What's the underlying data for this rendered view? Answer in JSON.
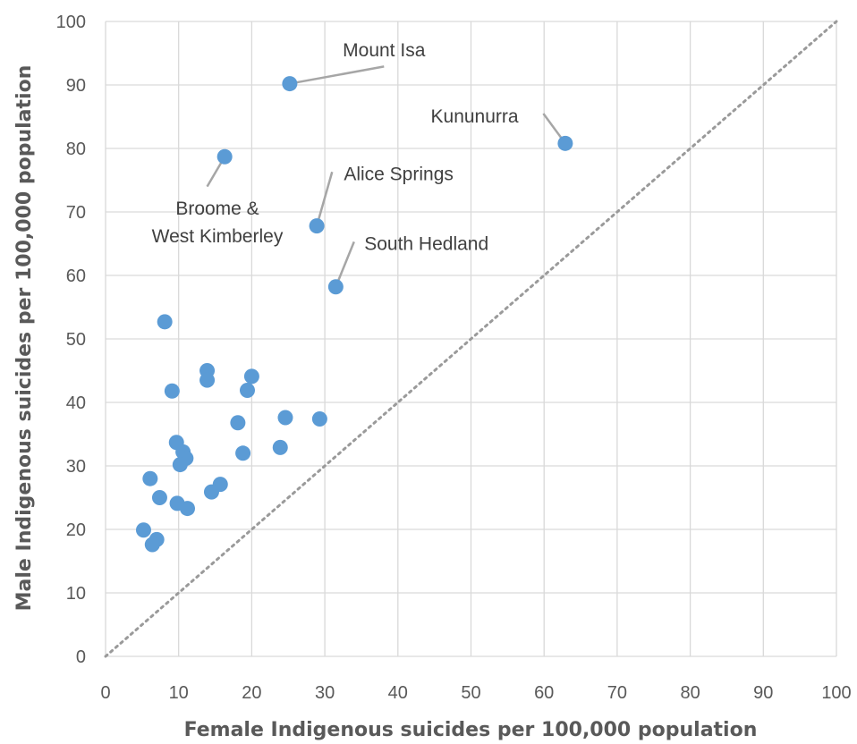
{
  "chart_data": {
    "type": "scatter",
    "title": "",
    "xlabel": "Female Indigenous suicides per 100,000 population",
    "ylabel": "Male Indigenous suicides per 100,000 population",
    "xlim": [
      0,
      100
    ],
    "ylim": [
      0,
      100
    ],
    "xticks": [
      0,
      10,
      20,
      30,
      40,
      50,
      60,
      70,
      80,
      90,
      100
    ],
    "yticks": [
      0,
      10,
      20,
      30,
      40,
      50,
      60,
      70,
      80,
      90,
      100
    ],
    "grid": true,
    "legend": "none",
    "reference_line": {
      "style": "dotted",
      "from": [
        0,
        0
      ],
      "to": [
        100,
        100
      ]
    },
    "marker_color": "#5b9bd5",
    "points": [
      {
        "x": 25.2,
        "y": 90.2
      },
      {
        "x": 62.9,
        "y": 80.8
      },
      {
        "x": 16.3,
        "y": 78.7
      },
      {
        "x": 28.9,
        "y": 67.8
      },
      {
        "x": 31.5,
        "y": 58.2
      },
      {
        "x": 8.1,
        "y": 52.7
      },
      {
        "x": 13.9,
        "y": 45.0
      },
      {
        "x": 13.9,
        "y": 43.5
      },
      {
        "x": 20.0,
        "y": 44.1
      },
      {
        "x": 9.1,
        "y": 41.8
      },
      {
        "x": 19.4,
        "y": 41.9
      },
      {
        "x": 24.6,
        "y": 37.6
      },
      {
        "x": 29.3,
        "y": 37.4
      },
      {
        "x": 18.1,
        "y": 36.8
      },
      {
        "x": 9.7,
        "y": 33.7
      },
      {
        "x": 23.9,
        "y": 32.9
      },
      {
        "x": 10.6,
        "y": 32.2
      },
      {
        "x": 18.8,
        "y": 32.0
      },
      {
        "x": 11.0,
        "y": 31.2
      },
      {
        "x": 10.2,
        "y": 30.2
      },
      {
        "x": 6.1,
        "y": 28.0
      },
      {
        "x": 15.7,
        "y": 27.1
      },
      {
        "x": 14.5,
        "y": 25.9
      },
      {
        "x": 7.4,
        "y": 25.0
      },
      {
        "x": 9.8,
        "y": 24.1
      },
      {
        "x": 11.2,
        "y": 23.3
      },
      {
        "x": 5.2,
        "y": 19.9
      },
      {
        "x": 7.0,
        "y": 18.4
      },
      {
        "x": 6.4,
        "y": 17.6
      }
    ],
    "annotations": [
      {
        "lines": [
          "Mount Isa"
        ],
        "point": [
          25.2,
          90.2
        ],
        "anchor": "middle",
        "text_at": [
          38.1,
          94.5
        ],
        "leader_to": [
          38.1,
          92.9
        ]
      },
      {
        "lines": [
          "Kununurra"
        ],
        "point": [
          62.9,
          80.8
        ],
        "anchor": "end",
        "text_at": [
          56.5,
          84.1
        ],
        "leader_to": [
          59.9,
          85.5
        ]
      },
      {
        "lines": [
          "Broome &",
          "West Kimberley"
        ],
        "point": [
          16.3,
          78.7
        ],
        "anchor": "middle",
        "text_at": [
          15.3,
          69.6
        ],
        "leader_to": [
          13.9,
          74.0
        ]
      },
      {
        "lines": [
          "Alice Springs"
        ],
        "point": [
          28.9,
          67.8
        ],
        "anchor": "start",
        "text_at": [
          32.6,
          75.0
        ],
        "leader_to": [
          31.0,
          76.3
        ]
      },
      {
        "lines": [
          "South Hedland"
        ],
        "point": [
          31.5,
          58.2
        ],
        "anchor": "start",
        "text_at": [
          35.4,
          64.0
        ],
        "leader_to": [
          34.0,
          65.3
        ]
      }
    ]
  }
}
